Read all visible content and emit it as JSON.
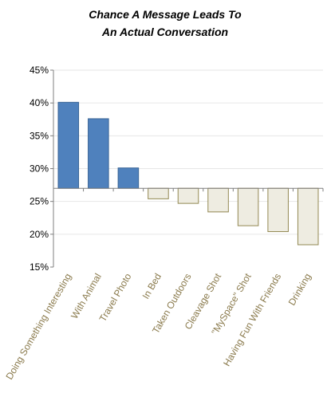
{
  "chart_data": {
    "type": "bar",
    "title_lines": [
      "Chance A  Message Leads To",
      "An Actual Conversation"
    ],
    "xlabel": "",
    "ylabel": "",
    "categories": [
      "Doing Something Interesting",
      "With Animal",
      "Travel Photo",
      "In Bed",
      "Taken Outdoors",
      "Cleavage Shot",
      "\"MySpace\" Shot",
      "Having Fun With Friends",
      "Drinking"
    ],
    "values": [
      40.1,
      37.6,
      30.1,
      25.4,
      24.7,
      23.4,
      21.3,
      20.4,
      18.4
    ],
    "baseline": 27.0,
    "ylim": [
      15,
      45
    ],
    "yticks": [
      15,
      20,
      25,
      30,
      35,
      40,
      45
    ],
    "ytick_labels": [
      "15%",
      "20%",
      "25%",
      "30%",
      "35%",
      "40%",
      "45%"
    ],
    "grid": true,
    "colors": {
      "above_fill": "#4f81bd",
      "above_stroke": "#3a6596",
      "below_fill": "#eeece1",
      "below_stroke": "#938953",
      "tick_label": "#8a7a4c",
      "grid": "#e6e6e6"
    }
  }
}
